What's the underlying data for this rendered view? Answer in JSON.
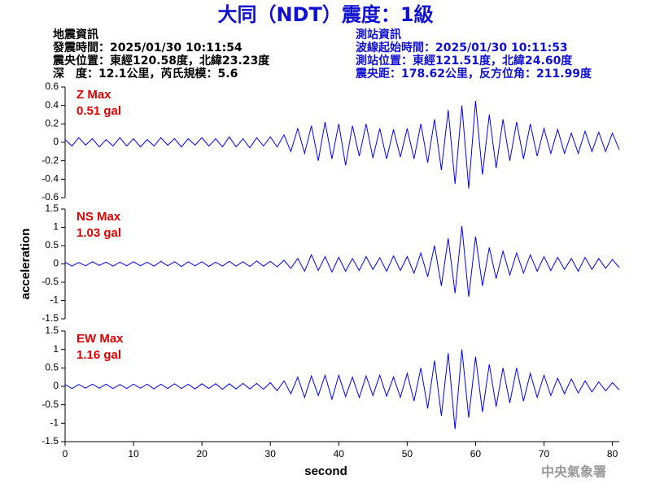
{
  "header": {
    "title": "大同（NDT）震度：1級",
    "left": [
      "地震資訊",
      "發震時間：2025/01/30 10:11:54",
      "震央位置：東經120.58度，北緯23.23度",
      "深　度：12.1公里，芮氏規模：5.6"
    ],
    "right": [
      "測站資訊",
      "波線起始時間：2025/01/30 10:11:53",
      "測站位置：東經121.51度，北緯24.60度",
      "震央距：178.62公里，反方位角：211.99度"
    ],
    "footer": "中央氣象署"
  },
  "chart_data": [
    {
      "type": "line",
      "label": "Z Max",
      "max_label": "0.51 gal",
      "color": "#0000ff",
      "xlim": [
        0,
        81
      ],
      "ylim": [
        -0.6,
        0.6
      ],
      "yticks": [
        0.6,
        0.4,
        0.2,
        0,
        -0.2,
        -0.4,
        -0.6
      ],
      "x": [
        0,
        1,
        2,
        3,
        4,
        5,
        6,
        7,
        8,
        9,
        10,
        11,
        12,
        13,
        14,
        15,
        16,
        17,
        18,
        19,
        20,
        21,
        22,
        23,
        24,
        25,
        26,
        27,
        28,
        29,
        30,
        31,
        32,
        33,
        34,
        35,
        36,
        37,
        38,
        39,
        40,
        41,
        42,
        43,
        44,
        45,
        46,
        47,
        48,
        49,
        50,
        51,
        52,
        53,
        54,
        55,
        56,
        57,
        58,
        59,
        60,
        61,
        62,
        63,
        64,
        65,
        66,
        67,
        68,
        69,
        70,
        71,
        72,
        73,
        74,
        75,
        76,
        77,
        78,
        79,
        80,
        81
      ],
      "values": [
        0.03,
        -0.04,
        0.05,
        -0.03,
        0.04,
        -0.05,
        0.03,
        -0.04,
        0.05,
        -0.04,
        0.04,
        -0.05,
        0.03,
        -0.04,
        0.05,
        -0.03,
        0.04,
        -0.05,
        0.04,
        -0.03,
        0.05,
        -0.04,
        0.04,
        -0.05,
        0.06,
        -0.05,
        0.04,
        -0.06,
        0.05,
        -0.04,
        0.06,
        -0.05,
        0.08,
        -0.1,
        0.15,
        -0.12,
        0.18,
        -0.2,
        0.22,
        -0.18,
        0.2,
        -0.25,
        0.18,
        -0.15,
        0.2,
        -0.17,
        0.15,
        -0.18,
        0.14,
        -0.16,
        0.15,
        -0.18,
        0.2,
        -0.22,
        0.25,
        -0.3,
        0.35,
        -0.45,
        0.4,
        -0.5,
        0.45,
        -0.35,
        0.3,
        -0.28,
        0.25,
        -0.2,
        0.22,
        -0.18,
        0.2,
        -0.15,
        0.15,
        -0.12,
        0.14,
        -0.12,
        0.1,
        -0.12,
        0.12,
        -0.1,
        0.11,
        -0.1,
        0.1,
        -0.08
      ]
    },
    {
      "type": "line",
      "label": "NS Max",
      "max_label": "1.03 gal",
      "color": "#0000ff",
      "xlim": [
        0,
        81
      ],
      "ylim": [
        -1.5,
        1.5
      ],
      "yticks": [
        1.5,
        1,
        0.5,
        0,
        -0.5,
        -1,
        -1.5
      ],
      "ylabel": "acceleration",
      "x": [
        0,
        1,
        2,
        3,
        4,
        5,
        6,
        7,
        8,
        9,
        10,
        11,
        12,
        13,
        14,
        15,
        16,
        17,
        18,
        19,
        20,
        21,
        22,
        23,
        24,
        25,
        26,
        27,
        28,
        29,
        30,
        31,
        32,
        33,
        34,
        35,
        36,
        37,
        38,
        39,
        40,
        41,
        42,
        43,
        44,
        45,
        46,
        47,
        48,
        49,
        50,
        51,
        52,
        53,
        54,
        55,
        56,
        57,
        58,
        59,
        60,
        61,
        62,
        63,
        64,
        65,
        66,
        67,
        68,
        69,
        70,
        71,
        72,
        73,
        74,
        75,
        76,
        77,
        78,
        79,
        80,
        81
      ],
      "values": [
        0.05,
        -0.06,
        0.04,
        -0.05,
        0.06,
        -0.04,
        0.05,
        -0.06,
        0.05,
        -0.05,
        0.06,
        -0.05,
        0.05,
        -0.06,
        0.07,
        -0.05,
        0.06,
        -0.07,
        0.06,
        -0.05,
        0.06,
        -0.07,
        0.05,
        -0.06,
        0.07,
        -0.06,
        0.06,
        -0.07,
        0.08,
        -0.06,
        0.07,
        -0.08,
        0.1,
        -0.12,
        0.15,
        -0.2,
        0.25,
        -0.18,
        0.2,
        -0.22,
        0.18,
        -0.2,
        0.15,
        -0.18,
        0.2,
        -0.15,
        0.17,
        -0.2,
        0.22,
        -0.18,
        0.2,
        -0.25,
        0.3,
        -0.35,
        0.5,
        -0.6,
        0.7,
        -0.8,
        1.03,
        -0.9,
        0.75,
        -0.6,
        0.45,
        -0.4,
        0.35,
        -0.3,
        0.3,
        -0.25,
        0.25,
        -0.2,
        0.2,
        -0.18,
        0.18,
        -0.15,
        0.15,
        -0.2,
        0.18,
        -0.15,
        0.15,
        -0.12,
        0.12,
        -0.1
      ]
    },
    {
      "type": "line",
      "label": "EW Max",
      "max_label": "1.16 gal",
      "color": "#0000ff",
      "xlim": [
        0,
        81
      ],
      "ylim": [
        -1.5,
        1.5
      ],
      "yticks": [
        1.5,
        1,
        0.5,
        0,
        -0.5,
        -1,
        -1.5
      ],
      "xticks": [
        0,
        10,
        20,
        30,
        40,
        50,
        60,
        70,
        80
      ],
      "xlabel": "second",
      "x": [
        0,
        1,
        2,
        3,
        4,
        5,
        6,
        7,
        8,
        9,
        10,
        11,
        12,
        13,
        14,
        15,
        16,
        17,
        18,
        19,
        20,
        21,
        22,
        23,
        24,
        25,
        26,
        27,
        28,
        29,
        30,
        31,
        32,
        33,
        34,
        35,
        36,
        37,
        38,
        39,
        40,
        41,
        42,
        43,
        44,
        45,
        46,
        47,
        48,
        49,
        50,
        51,
        52,
        53,
        54,
        55,
        56,
        57,
        58,
        59,
        60,
        61,
        62,
        63,
        64,
        65,
        66,
        67,
        68,
        69,
        70,
        71,
        72,
        73,
        74,
        75,
        76,
        77,
        78,
        79,
        80,
        81
      ],
      "values": [
        0.05,
        -0.06,
        0.05,
        -0.05,
        0.06,
        -0.05,
        0.06,
        -0.06,
        0.05,
        -0.06,
        0.06,
        -0.05,
        0.06,
        -0.07,
        0.06,
        -0.06,
        0.07,
        -0.06,
        0.06,
        -0.07,
        0.07,
        -0.06,
        0.07,
        -0.08,
        0.07,
        -0.07,
        0.08,
        -0.07,
        0.08,
        -0.08,
        0.1,
        -0.12,
        0.15,
        -0.2,
        0.25,
        -0.3,
        0.28,
        -0.25,
        0.3,
        -0.35,
        0.3,
        -0.28,
        0.25,
        -0.3,
        0.28,
        -0.25,
        0.3,
        -0.27,
        0.25,
        -0.3,
        0.35,
        -0.4,
        0.5,
        -0.6,
        0.7,
        -0.8,
        0.9,
        -1.16,
        1.0,
        -0.85,
        0.8,
        -0.7,
        0.6,
        -0.55,
        0.5,
        -0.45,
        0.5,
        -0.4,
        0.35,
        -0.3,
        0.3,
        -0.25,
        0.22,
        -0.2,
        0.2,
        -0.18,
        0.15,
        -0.15,
        0.12,
        -0.12,
        0.1,
        -0.1
      ]
    }
  ]
}
